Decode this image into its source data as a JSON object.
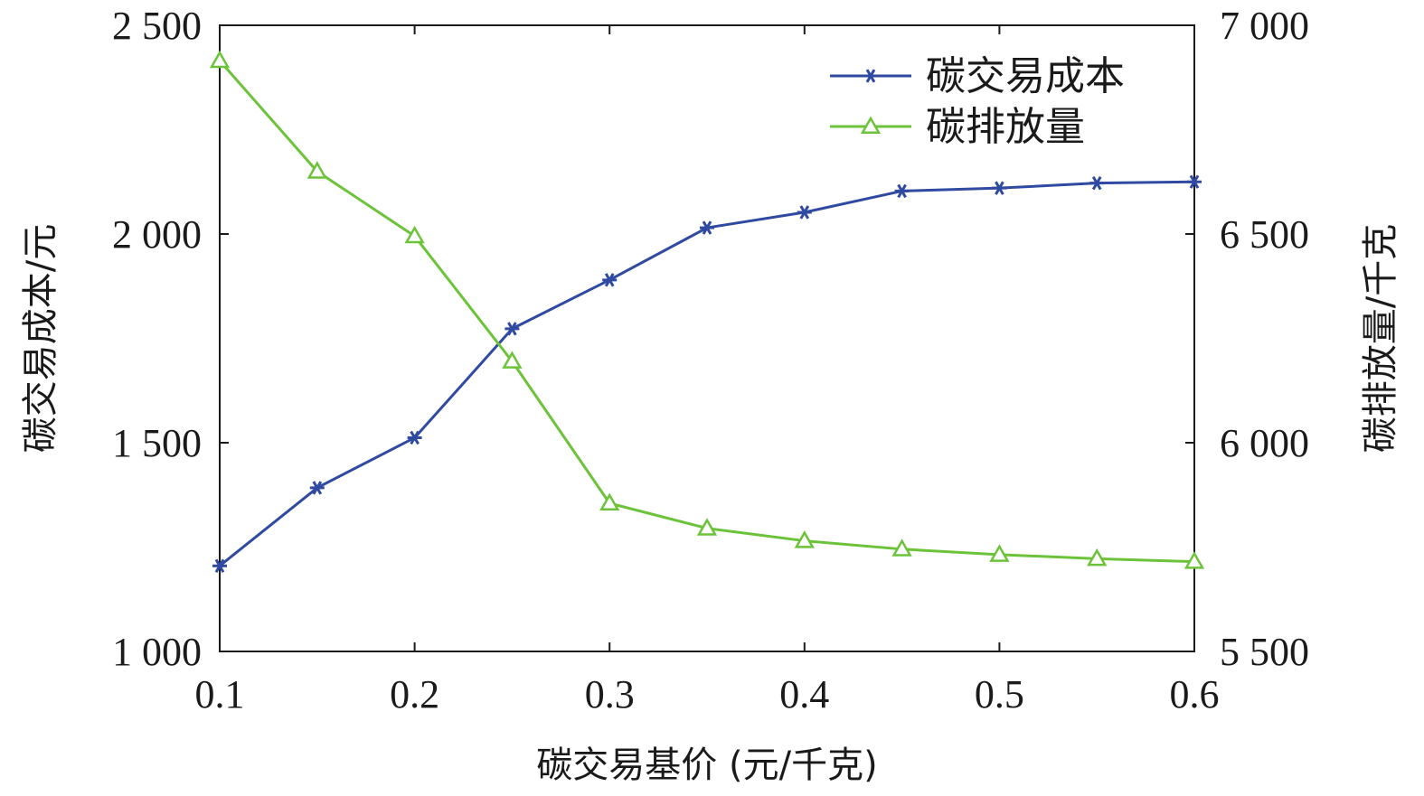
{
  "chart_data": {
    "type": "line",
    "xlabel": "碳交易基价 (元/千克)",
    "ylabel_left": "碳交易成本/元",
    "ylabel_right": "碳排放量/千克",
    "x": [
      0.1,
      0.15,
      0.2,
      0.25,
      0.3,
      0.35,
      0.4,
      0.45,
      0.5,
      0.55,
      0.6
    ],
    "x_ticks": [
      "0.1",
      "0.2",
      "0.3",
      "0.4",
      "0.5",
      "0.6"
    ],
    "x_tick_values": [
      0.1,
      0.2,
      0.3,
      0.4,
      0.5,
      0.6
    ],
    "xlim": [
      0.1,
      0.6
    ],
    "ylim_left": [
      1000,
      2500
    ],
    "y_ticks_left": [
      "1 000",
      "1 500",
      "2 000",
      "2 500"
    ],
    "y_tick_values_left": [
      1000,
      1500,
      2000,
      2500
    ],
    "ylim_right": [
      5500,
      7000
    ],
    "y_ticks_right": [
      "5 500",
      "6 000",
      "6 500",
      "7 000"
    ],
    "y_tick_values_right": [
      5500,
      6000,
      6500,
      7000
    ],
    "grid": false,
    "legend_position": "top-right",
    "series": [
      {
        "name": "碳交易成本",
        "axis": "left",
        "marker": "asterisk",
        "color": "#2f4aa0",
        "values": [
          1205,
          1392,
          1512,
          1773,
          1890,
          2015,
          2052,
          2103,
          2110,
          2122,
          2125
        ]
      },
      {
        "name": "碳排放量",
        "axis": "right",
        "marker": "triangle",
        "color": "#6cc33a",
        "values": [
          6915,
          6650,
          6495,
          6195,
          5855,
          5795,
          5765,
          5745,
          5732,
          5722,
          5715
        ]
      }
    ]
  }
}
